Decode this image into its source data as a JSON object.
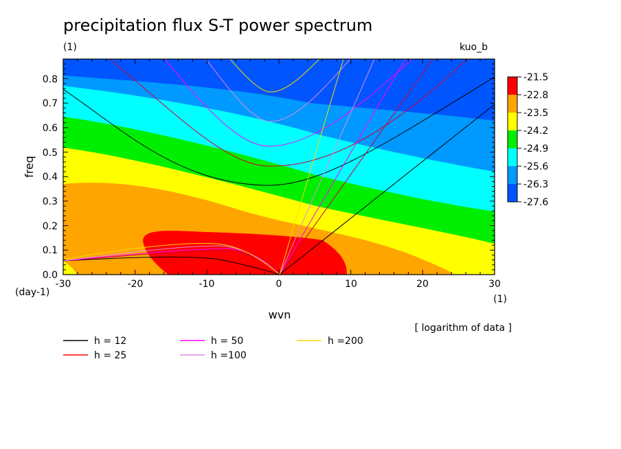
{
  "title": "precipitation flux S-T power spectrum",
  "subtitle_units": "(1)",
  "run_label": "kuo_b",
  "x_axis_label": "wvn",
  "y_axis_label": "freq",
  "x_unit_label": "(1)",
  "y_unit_label": "(day-1)",
  "note": "[ logarithm of data ]",
  "colors": {
    "red": "#ff0000",
    "orange": "#ffa500",
    "yellow": "#ffff00",
    "green": "#00ee00",
    "cyan": "#00ffff",
    "light_blue": "#0099ff",
    "blue": "#0055ff"
  },
  "chart_data": {
    "type": "heatmap",
    "title": "precipitation flux S-T power spectrum",
    "xlabel": "wvn",
    "ylabel": "freq",
    "xlim": [
      -30,
      30
    ],
    "ylim": [
      0,
      0.88
    ],
    "x_ticks": [
      "-30",
      "-20",
      "-10",
      "0",
      "10",
      "20",
      "30"
    ],
    "y_ticks": [
      "0.0",
      "0.1",
      "0.2",
      "0.3",
      "0.4",
      "0.5",
      "0.6",
      "0.7",
      "0.8"
    ],
    "colorbar_levels": [
      "-21.5",
      "-22.8",
      "-23.5",
      "-24.2",
      "-24.9",
      "-25.6",
      "-26.3",
      "-27.6"
    ],
    "colorbar_colors": [
      "#ff0000",
      "#ffa500",
      "#ffff00",
      "#00ee00",
      "#00ffff",
      "#0099ff",
      "#0055ff"
    ],
    "legend_location": "bottom",
    "legend": [
      {
        "label": "h = 12",
        "color": "#000000"
      },
      {
        "label": "h = 25",
        "color": "#ff0000"
      },
      {
        "label": "h = 50",
        "color": "#ff00ff"
      },
      {
        "label": "h =100",
        "color": "#e08ce0"
      },
      {
        "label": "h =200",
        "color": "#ffd700"
      }
    ],
    "dispersion_lines": [
      {
        "h": 12,
        "color": "#000000"
      },
      {
        "h": 25,
        "color": "#ff0000"
      },
      {
        "h": 50,
        "color": "#ff00ff"
      },
      {
        "h": 100,
        "color": "#e08ce0"
      },
      {
        "h": 200,
        "color": "#ffd700"
      }
    ]
  }
}
